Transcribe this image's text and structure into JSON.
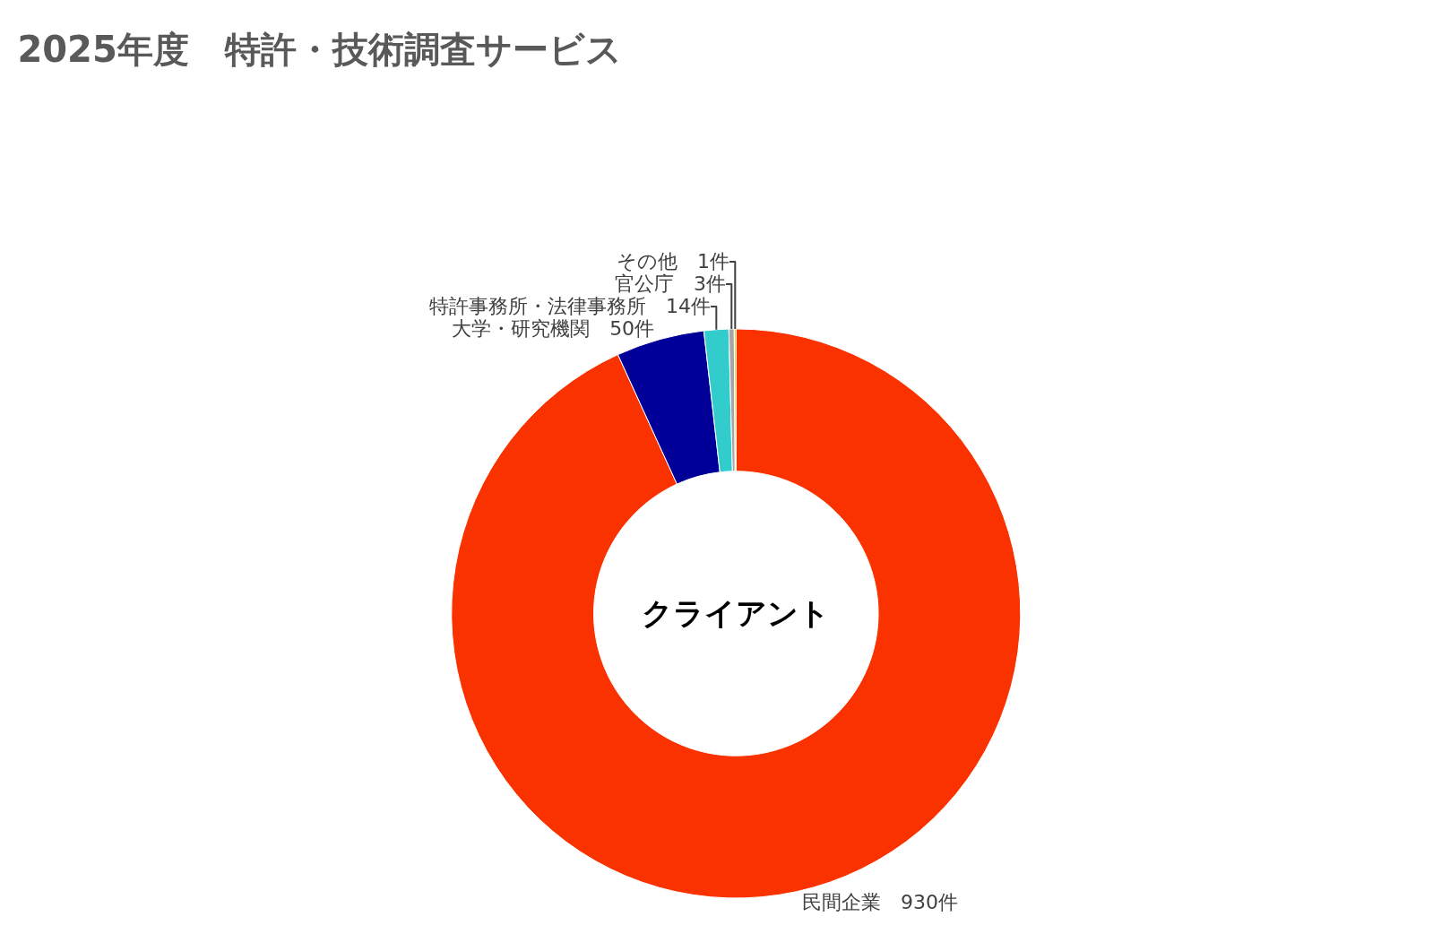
{
  "chart_data": {
    "type": "donut",
    "title": "2025年度　特許・技術調査サービス",
    "categories": [
      "民間企業",
      "大学・研究機関",
      "特許事務所・法律事務所",
      "官公庁",
      "その他"
    ],
    "values": [
      930,
      50,
      14,
      3,
      1
    ],
    "value_labels": [
      "930件",
      "50件",
      "14件",
      "3件",
      "1件"
    ],
    "colors": [
      "#fa3200",
      "#000099",
      "#33cccc",
      "#a6a6a6",
      "#ffc000"
    ],
    "annotations": [
      "クライアント"
    ],
    "legend": false
  }
}
